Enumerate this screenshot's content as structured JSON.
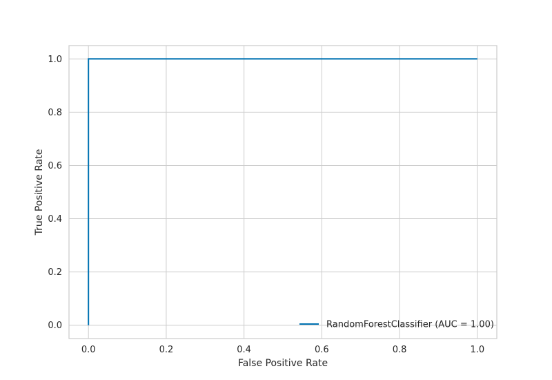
{
  "chart_data": {
    "type": "line",
    "title": "",
    "xlabel": "False Positive Rate",
    "ylabel": "True Positive Rate",
    "xlim": [
      -0.05,
      1.05
    ],
    "ylim": [
      -0.05,
      1.05
    ],
    "xticks": [
      0.0,
      0.2,
      0.4,
      0.6,
      0.8,
      1.0
    ],
    "yticks": [
      0.0,
      0.2,
      0.4,
      0.6,
      0.8,
      1.0
    ],
    "xtick_labels": [
      "0.0",
      "0.2",
      "0.4",
      "0.6",
      "0.8",
      "1.0"
    ],
    "ytick_labels": [
      "0.0",
      "0.2",
      "0.4",
      "0.6",
      "0.8",
      "1.0"
    ],
    "grid": true,
    "legend_position": "lower-right",
    "series": [
      {
        "name": "RandomForestClassifier (AUC = 1.00)",
        "color": "#0072b2",
        "x": [
          0.0,
          0.0,
          1.0
        ],
        "y": [
          0.0,
          1.0,
          1.0
        ]
      }
    ]
  }
}
